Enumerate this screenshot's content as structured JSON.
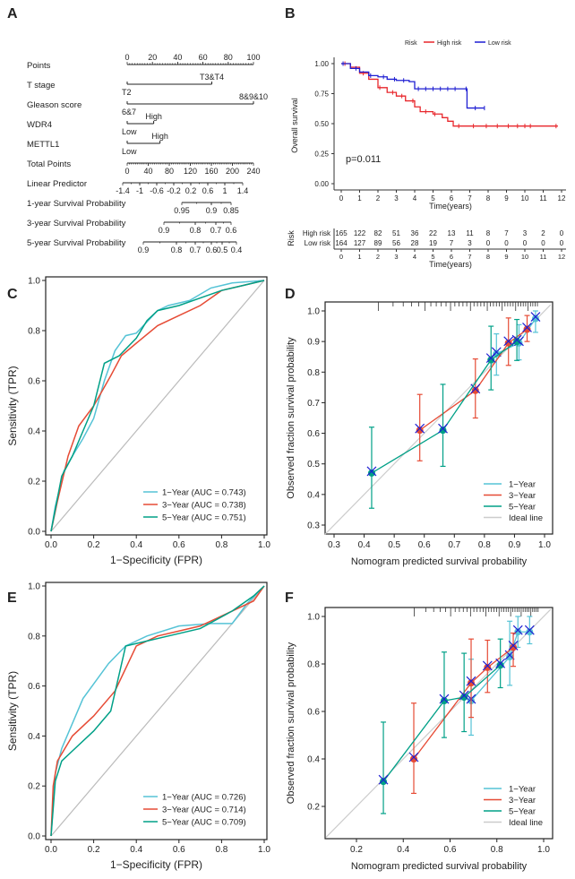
{
  "panel_letters": [
    "A",
    "B",
    "C",
    "D",
    "E",
    "F"
  ],
  "chart_data": [
    {
      "panel": "A",
      "type": "nomogram",
      "rows": [
        {
          "label": "Points",
          "ticks": [
            "0",
            "20",
            "40",
            "60",
            "80",
            "100"
          ]
        },
        {
          "label": "T stage",
          "levels": [
            "T2",
            "T3&T4"
          ],
          "points": [
            0,
            67
          ]
        },
        {
          "label": "Gleason score",
          "levels": [
            "6&7",
            "8&9&10"
          ],
          "points": [
            0,
            100
          ]
        },
        {
          "label": "WDR4",
          "levels": [
            "Low",
            "High"
          ],
          "points": [
            0,
            21
          ]
        },
        {
          "label": "METTL1",
          "levels": [
            "Low",
            "High"
          ],
          "points": [
            0,
            26
          ]
        },
        {
          "label": "Total Points",
          "ticks": [
            "0",
            "40",
            "80",
            "120",
            "160",
            "200",
            "240"
          ]
        },
        {
          "label": "Linear Predictor",
          "ticks": [
            "-1.4",
            "-1",
            "-0.6",
            "-0.2",
            "0.2",
            "0.6",
            "1",
            "1.4"
          ]
        },
        {
          "label": "1-year Survival Probability",
          "ticks": [
            "0.95",
            "0.9",
            "0.85"
          ]
        },
        {
          "label": "3-year Survival Probability",
          "ticks": [
            "0.9",
            "0.8",
            "0.7",
            "0.6"
          ]
        },
        {
          "label": "5-year Survival Probability",
          "ticks": [
            "0.9",
            "0.8",
            "0.7",
            "0.6",
            "0.5",
            "0.4"
          ]
        }
      ]
    },
    {
      "panel": "B",
      "type": "line",
      "subtype": "kaplan-meier",
      "legend_title": "Risk",
      "legend_position": "top",
      "xlabel": "Time(years)",
      "ylabel": "Overall survival",
      "xlim": [
        0,
        12
      ],
      "ylim": [
        0,
        1
      ],
      "xticks": [
        "0",
        "1",
        "2",
        "3",
        "4",
        "5",
        "6",
        "7",
        "8",
        "9",
        "10",
        "11",
        "12"
      ],
      "yticks": [
        "0.00",
        "0.25",
        "0.50",
        "0.75",
        "1.00"
      ],
      "annotation": "p=0.011",
      "series": [
        {
          "name": "High risk",
          "color": "#E8262B",
          "x": [
            0,
            0.5,
            1,
            1.5,
            2,
            2.5,
            3,
            3.5,
            4,
            4.3,
            5,
            5.5,
            5.8,
            6.1,
            11.8
          ],
          "y": [
            1,
            0.97,
            0.92,
            0.87,
            0.8,
            0.76,
            0.73,
            0.69,
            0.64,
            0.6,
            0.58,
            0.55,
            0.52,
            0.48,
            0.48
          ],
          "censor_x": [
            0.2,
            1.2,
            2.1,
            2.8,
            3.3,
            3.9,
            4.6,
            5.1,
            6.4,
            7.2,
            7.9,
            8.5,
            9.1,
            9.6,
            10,
            10.3,
            11.7
          ]
        },
        {
          "name": "Low risk",
          "color": "#1E1ED2",
          "x": [
            0,
            0.5,
            1,
            1.5,
            2,
            2.5,
            3,
            3.7,
            4,
            6.85,
            6.85,
            7.8
          ],
          "y": [
            1,
            0.96,
            0.93,
            0.9,
            0.89,
            0.87,
            0.86,
            0.85,
            0.79,
            0.79,
            0.63,
            0.63
          ],
          "censor_x": [
            0.1,
            0.8,
            1.6,
            2.3,
            2.9,
            3.4,
            4.2,
            4.6,
            5,
            5.4,
            5.8,
            6.2,
            6.8,
            7.3,
            7.8
          ]
        }
      ],
      "risk_table": {
        "title": "Risk",
        "xlabel": "Time(years)",
        "rows": [
          {
            "name": "High risk",
            "color": "#E8262B",
            "values": [
              "165",
              "122",
              "82",
              "51",
              "36",
              "22",
              "13",
              "11",
              "8",
              "7",
              "3",
              "2",
              "0"
            ]
          },
          {
            "name": "Low risk",
            "color": "#1E1ED2",
            "values": [
              "164",
              "127",
              "89",
              "56",
              "28",
              "19",
              "7",
              "3",
              "0",
              "0",
              "0",
              "0",
              "0"
            ]
          }
        ]
      }
    },
    {
      "panel": "C",
      "type": "line",
      "subtype": "roc",
      "xlabel": "1−Specificity (FPR)",
      "ylabel": "Sensitivity (TPR)",
      "xlim": [
        0,
        1
      ],
      "ylim": [
        0,
        1
      ],
      "xticks": [
        "0.0",
        "0.2",
        "0.4",
        "0.6",
        "0.8",
        "1.0"
      ],
      "yticks": [
        "0.0",
        "0.2",
        "0.4",
        "0.6",
        "0.8",
        "1.0"
      ],
      "legend_position": "bottom-right",
      "diagonal_color": "#BBBBBB",
      "series": [
        {
          "name": "1−Year (AUC = 0.743)",
          "color": "#55C3D6",
          "points": [
            [
              0,
              0
            ],
            [
              0.02,
              0.1
            ],
            [
              0.06,
              0.24
            ],
            [
              0.1,
              0.3
            ],
            [
              0.15,
              0.37
            ],
            [
              0.2,
              0.45
            ],
            [
              0.25,
              0.6
            ],
            [
              0.3,
              0.72
            ],
            [
              0.35,
              0.78
            ],
            [
              0.4,
              0.79
            ],
            [
              0.5,
              0.88
            ],
            [
              0.55,
              0.9
            ],
            [
              0.65,
              0.92
            ],
            [
              0.75,
              0.97
            ],
            [
              0.85,
              0.99
            ],
            [
              1,
              1
            ]
          ]
        },
        {
          "name": "3−Year (AUC = 0.738)",
          "color": "#E64B35",
          "points": [
            [
              0,
              0
            ],
            [
              0.03,
              0.12
            ],
            [
              0.08,
              0.3
            ],
            [
              0.13,
              0.42
            ],
            [
              0.2,
              0.5
            ],
            [
              0.28,
              0.62
            ],
            [
              0.33,
              0.7
            ],
            [
              0.4,
              0.75
            ],
            [
              0.5,
              0.82
            ],
            [
              0.6,
              0.86
            ],
            [
              0.7,
              0.9
            ],
            [
              0.8,
              0.96
            ],
            [
              0.9,
              0.98
            ],
            [
              1,
              1
            ]
          ]
        },
        {
          "name": "5−Year (AUC = 0.751)",
          "color": "#00A087",
          "points": [
            [
              0,
              0
            ],
            [
              0.05,
              0.22
            ],
            [
              0.1,
              0.3
            ],
            [
              0.15,
              0.4
            ],
            [
              0.2,
              0.5
            ],
            [
              0.25,
              0.67
            ],
            [
              0.32,
              0.7
            ],
            [
              0.4,
              0.77
            ],
            [
              0.45,
              0.84
            ],
            [
              0.5,
              0.88
            ],
            [
              0.6,
              0.9
            ],
            [
              0.7,
              0.93
            ],
            [
              0.8,
              0.96
            ],
            [
              0.9,
              0.98
            ],
            [
              1,
              1
            ]
          ]
        }
      ]
    },
    {
      "panel": "D",
      "type": "scatter",
      "subtype": "calibration",
      "xlabel": "Nomogram predicted survival probability",
      "ylabel": "Observed fraction survival probability",
      "xlim": [
        0.27,
        1.02
      ],
      "ylim": [
        0.27,
        1.03
      ],
      "xticks": [
        "0.3",
        "0.4",
        "0.5",
        "0.6",
        "0.7",
        "0.8",
        "0.9",
        "1.0"
      ],
      "yticks": [
        "0.3",
        "0.4",
        "0.5",
        "0.6",
        "0.7",
        "0.8",
        "0.9",
        "1.0"
      ],
      "legend_position": "bottom-right",
      "ideal_label": "Ideal line",
      "ideal_color": "#CCCCCC",
      "x_marker_color": "#1E1ED2",
      "series": [
        {
          "name": "1−Year",
          "color": "#55C3D6",
          "points": [
            [
              0.84,
              0.86,
              0.79,
              0.925
            ],
            [
              0.915,
              0.895,
              0.84,
              0.955
            ],
            [
              0.97,
              0.975,
              0.93,
              1.0
            ]
          ]
        },
        {
          "name": "3−Year",
          "color": "#E64B35",
          "points": [
            [
              0.585,
              0.61,
              0.51,
              0.727
            ],
            [
              0.77,
              0.74,
              0.65,
              0.843
            ],
            [
              0.88,
              0.895,
              0.822,
              0.977
            ],
            [
              0.942,
              0.94,
              0.9,
              0.985
            ]
          ]
        },
        {
          "name": "5−Year",
          "color": "#00A087",
          "points": [
            [
              0.425,
              0.47,
              0.355,
              0.62
            ],
            [
              0.662,
              0.61,
              0.492,
              0.76
            ],
            [
              0.822,
              0.84,
              0.742,
              0.95
            ],
            [
              0.908,
              0.9,
              0.838,
              0.972
            ]
          ]
        }
      ]
    },
    {
      "panel": "E",
      "type": "line",
      "subtype": "roc",
      "xlabel": "1−Specificity (FPR)",
      "ylabel": "Sensitivity (TPR)",
      "xlim": [
        0,
        1
      ],
      "ylim": [
        0,
        1
      ],
      "xticks": [
        "0.0",
        "0.2",
        "0.4",
        "0.6",
        "0.8",
        "1.0"
      ],
      "yticks": [
        "0.0",
        "0.2",
        "0.4",
        "0.6",
        "0.8",
        "1.0"
      ],
      "legend_position": "bottom-right",
      "diagonal_color": "#BBBBBB",
      "series": [
        {
          "name": "1−Year (AUC = 0.726)",
          "color": "#55C3D6",
          "points": [
            [
              0,
              0
            ],
            [
              0.02,
              0.25
            ],
            [
              0.05,
              0.35
            ],
            [
              0.1,
              0.45
            ],
            [
              0.15,
              0.55
            ],
            [
              0.27,
              0.69
            ],
            [
              0.35,
              0.76
            ],
            [
              0.45,
              0.8
            ],
            [
              0.6,
              0.84
            ],
            [
              0.75,
              0.85
            ],
            [
              0.85,
              0.85
            ],
            [
              0.92,
              0.93
            ],
            [
              1,
              1
            ]
          ]
        },
        {
          "name": "3−Year (AUC = 0.714)",
          "color": "#E64B35",
          "points": [
            [
              0,
              0
            ],
            [
              0.01,
              0.2
            ],
            [
              0.03,
              0.3
            ],
            [
              0.1,
              0.4
            ],
            [
              0.2,
              0.48
            ],
            [
              0.3,
              0.58
            ],
            [
              0.4,
              0.76
            ],
            [
              0.5,
              0.8
            ],
            [
              0.6,
              0.82
            ],
            [
              0.7,
              0.84
            ],
            [
              0.85,
              0.9
            ],
            [
              0.95,
              0.94
            ],
            [
              1,
              1
            ]
          ]
        },
        {
          "name": "5−Year (AUC = 0.709)",
          "color": "#00A087",
          "points": [
            [
              0,
              0
            ],
            [
              0.02,
              0.22
            ],
            [
              0.05,
              0.3
            ],
            [
              0.1,
              0.34
            ],
            [
              0.2,
              0.42
            ],
            [
              0.28,
              0.5
            ],
            [
              0.35,
              0.76
            ],
            [
              0.45,
              0.78
            ],
            [
              0.55,
              0.8
            ],
            [
              0.7,
              0.83
            ],
            [
              0.85,
              0.9
            ],
            [
              0.95,
              0.96
            ],
            [
              1,
              1
            ]
          ]
        }
      ]
    },
    {
      "panel": "F",
      "type": "scatter",
      "subtype": "calibration",
      "xlabel": "Nomogram predicted survival probability",
      "ylabel": "Observed fraction survival probability",
      "xlim": [
        0.07,
        1.03
      ],
      "ylim": [
        0.07,
        1.03
      ],
      "xticks": [
        "0.2",
        "0.4",
        "0.6",
        "0.8",
        "1.0"
      ],
      "yticks": [
        "0.2",
        "0.4",
        "0.6",
        "0.8",
        "1.0"
      ],
      "legend_position": "bottom-right",
      "ideal_label": "Ideal line",
      "ideal_color": "#CCCCCC",
      "x_marker_color": "#1E1ED2",
      "series": [
        {
          "name": "1−Year",
          "color": "#55C3D6",
          "points": [
            [
              0.69,
              0.645,
              0.5,
              0.82
            ],
            [
              0.855,
              0.83,
              0.71,
              0.98
            ],
            [
              0.89,
              0.935,
              0.87,
              1.0
            ],
            [
              0.94,
              0.935,
              0.885,
              1.0
            ]
          ]
        },
        {
          "name": "3−Year",
          "color": "#E64B35",
          "points": [
            [
              0.445,
              0.4,
              0.255,
              0.635
            ],
            [
              0.69,
              0.72,
              0.575,
              0.905
            ],
            [
              0.76,
              0.785,
              0.68,
              0.9
            ],
            [
              0.87,
              0.87,
              0.79,
              0.93
            ]
          ]
        },
        {
          "name": "5−Year",
          "color": "#00A087",
          "points": [
            [
              0.315,
              0.305,
              0.17,
              0.555
            ],
            [
              0.575,
              0.645,
              0.49,
              0.85
            ],
            [
              0.66,
              0.66,
              0.515,
              0.845
            ],
            [
              0.815,
              0.795,
              0.7,
              0.905
            ]
          ]
        }
      ]
    }
  ]
}
